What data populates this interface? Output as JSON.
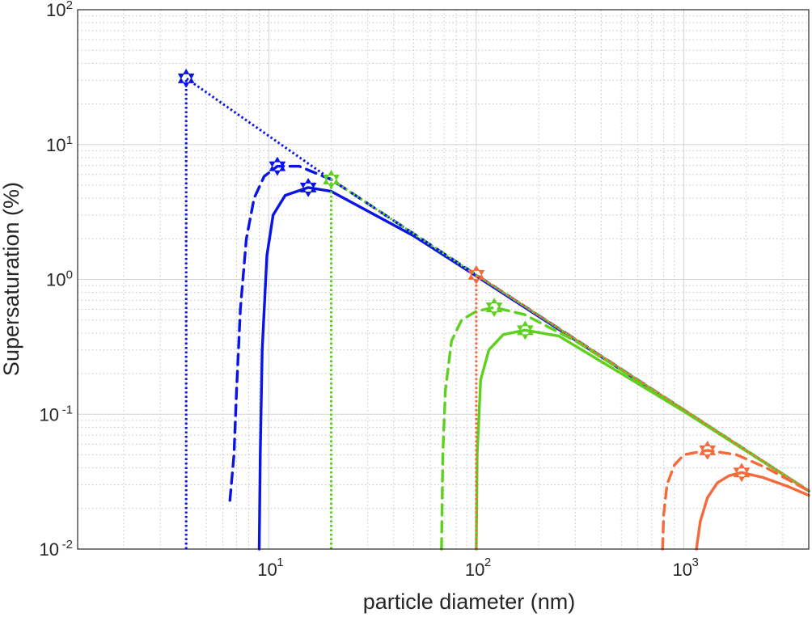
{
  "colors": {
    "blue": "#0a14e6",
    "green": "#5ed11e",
    "orange": "#f56a3b",
    "grid_major": "#d4d4d4",
    "grid_minor": "#c4c4c4",
    "axis": "#262626"
  },
  "chart_data": {
    "type": "line",
    "title": "",
    "xlabel": "particle diameter (nm)",
    "ylabel": "Supersaturation (%)",
    "xscale": "log",
    "yscale": "log",
    "xlim": [
      1.2,
      4000
    ],
    "ylim": [
      0.01,
      100
    ],
    "grid": "major and minor",
    "legend": "none",
    "x_ticks": [
      {
        "value": 10,
        "base": "10",
        "exp": "1"
      },
      {
        "value": 100,
        "base": "10",
        "exp": "2"
      },
      {
        "value": 1000,
        "base": "10",
        "exp": "3"
      }
    ],
    "y_ticks": [
      {
        "value": 0.01,
        "base": "10",
        "exp": "-2"
      },
      {
        "value": 0.1,
        "base": "10",
        "exp": "-1"
      },
      {
        "value": 1,
        "base": "10",
        "exp": "0"
      },
      {
        "value": 10,
        "base": "10",
        "exp": "1"
      },
      {
        "value": 100,
        "base": "10",
        "exp": "2"
      }
    ],
    "series": [
      {
        "color": "blue",
        "style": "dotted",
        "points": [
          [
            4,
            0.01
          ],
          [
            4,
            31
          ],
          [
            20,
            5.5
          ]
        ],
        "star": [
          4,
          31
        ]
      },
      {
        "color": "blue",
        "style": "dashed",
        "points": [
          [
            6.5,
            0.023
          ],
          [
            6.8,
            0.05
          ],
          [
            7.0,
            0.15
          ],
          [
            7.3,
            0.6
          ],
          [
            7.8,
            2.0
          ],
          [
            8.5,
            4.0
          ],
          [
            9.5,
            5.8
          ],
          [
            11,
            6.9
          ],
          [
            14,
            6.9
          ],
          [
            20,
            5.5
          ],
          [
            100,
            1.08
          ],
          [
            1000,
            0.108
          ],
          [
            4000,
            0.027
          ]
        ],
        "star": [
          11,
          6.9
        ]
      },
      {
        "color": "blue",
        "style": "solid",
        "points": [
          [
            9,
            0.01
          ],
          [
            9.1,
            0.05
          ],
          [
            9.3,
            0.3
          ],
          [
            9.8,
            1.5
          ],
          [
            10.5,
            3.0
          ],
          [
            12,
            4.2
          ],
          [
            15.5,
            4.8
          ],
          [
            20,
            4.5
          ],
          [
            50,
            2.1
          ],
          [
            100,
            1.06
          ],
          [
            1000,
            0.107
          ],
          [
            4000,
            0.027
          ]
        ],
        "star": [
          15.5,
          4.8
        ]
      },
      {
        "color": "green",
        "style": "dotted",
        "points": [
          [
            20,
            0.01
          ],
          [
            20,
            5.5
          ],
          [
            100,
            1.08
          ],
          [
            1000,
            0.108
          ],
          [
            4000,
            0.027
          ]
        ],
        "star": [
          20,
          5.5
        ]
      },
      {
        "color": "green",
        "style": "dashed",
        "points": [
          [
            68,
            0.01
          ],
          [
            69,
            0.05
          ],
          [
            71,
            0.15
          ],
          [
            76,
            0.35
          ],
          [
            85,
            0.5
          ],
          [
            100,
            0.58
          ],
          [
            122,
            0.62
          ],
          [
            170,
            0.55
          ],
          [
            300,
            0.35
          ],
          [
            1000,
            0.108
          ],
          [
            4000,
            0.027
          ]
        ],
        "star": [
          122,
          0.62
        ]
      },
      {
        "color": "green",
        "style": "solid",
        "points": [
          [
            100,
            0.01
          ],
          [
            101,
            0.05
          ],
          [
            105,
            0.18
          ],
          [
            115,
            0.3
          ],
          [
            135,
            0.39
          ],
          [
            172,
            0.42
          ],
          [
            250,
            0.38
          ],
          [
            500,
            0.2
          ],
          [
            1000,
            0.105
          ],
          [
            4000,
            0.027
          ]
        ],
        "star": [
          172,
          0.42
        ]
      },
      {
        "color": "orange",
        "style": "dotted",
        "points": [
          [
            100,
            0.01
          ],
          [
            100,
            1.08
          ],
          [
            1000,
            0.108
          ],
          [
            4000,
            0.027
          ]
        ],
        "star": [
          100,
          1.08
        ]
      },
      {
        "color": "orange",
        "style": "dashed",
        "points": [
          [
            790,
            0.01
          ],
          [
            800,
            0.018
          ],
          [
            830,
            0.03
          ],
          [
            900,
            0.042
          ],
          [
            1000,
            0.05
          ],
          [
            1300,
            0.054
          ],
          [
            1800,
            0.05
          ],
          [
            2500,
            0.04
          ],
          [
            4000,
            0.027
          ]
        ],
        "star": [
          1300,
          0.054
        ]
      },
      {
        "color": "orange",
        "style": "solid",
        "points": [
          [
            1150,
            0.01
          ],
          [
            1200,
            0.016
          ],
          [
            1300,
            0.024
          ],
          [
            1450,
            0.031
          ],
          [
            1650,
            0.035
          ],
          [
            1900,
            0.037
          ],
          [
            2400,
            0.034
          ],
          [
            3200,
            0.029
          ],
          [
            4000,
            0.025
          ]
        ],
        "star": [
          1900,
          0.037
        ]
      }
    ]
  }
}
